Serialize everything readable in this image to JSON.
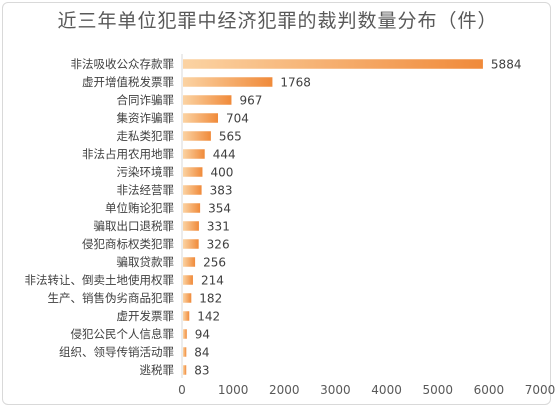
{
  "chart_data": {
    "type": "bar",
    "orientation": "horizontal",
    "title": "近三年单位犯罪中经济犯罪的裁判数量分布（件）",
    "categories": [
      "非法吸收公众存款罪",
      "虚开增值税发票罪",
      "合同诈骗罪",
      "集资诈骗罪",
      "走私类犯罪",
      "非法占用农用地罪",
      "污染环境罪",
      "非法经营罪",
      "单位贿论犯罪",
      "骗取出口退税罪",
      "侵犯商标权类犯罪",
      "骗取贷款罪",
      "非法转让、倒卖土地使用权罪",
      "生产、销售伪劣商品犯罪",
      "虚开发票罪",
      "侵犯公民个人信息罪",
      "组织、领导传销活动罪",
      "逃税罪"
    ],
    "values": [
      5884,
      1768,
      967,
      704,
      565,
      444,
      400,
      383,
      354,
      331,
      326,
      256,
      214,
      182,
      142,
      94,
      84,
      83
    ],
    "xlim": [
      0,
      7000
    ],
    "xticks": [
      0,
      1000,
      2000,
      3000,
      4000,
      5000,
      6000,
      7000
    ],
    "grid": true,
    "colors": {
      "bar_light": "#fbd3a3",
      "bar_dark": "#f08a3a",
      "text": "#404040",
      "axis": "#d9d9d9"
    }
  }
}
